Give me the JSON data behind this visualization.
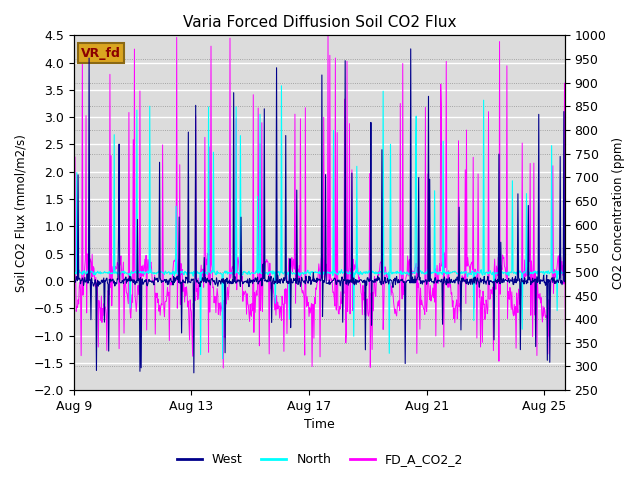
{
  "title": "Varia Forced Diffusion Soil CO2 Flux",
  "ylabel_left": "Soil CO2 Flux (mmol/m2/s)",
  "ylabel_right": "CO2 Concentration (ppm)",
  "xlabel": "Time",
  "ylim_left": [
    -2.0,
    4.5
  ],
  "ylim_right": [
    250,
    1000
  ],
  "yticks_left": [
    -2.0,
    -1.5,
    -1.0,
    -0.5,
    0.0,
    0.5,
    1.0,
    1.5,
    2.0,
    2.5,
    3.0,
    3.5,
    4.0,
    4.5
  ],
  "yticks_right": [
    250,
    300,
    350,
    400,
    450,
    500,
    550,
    600,
    650,
    700,
    750,
    800,
    850,
    900,
    950,
    1000
  ],
  "xtick_labels": [
    "Aug 9",
    "Aug 13",
    "Aug 17",
    "Aug 21",
    "Aug 25"
  ],
  "west_color": "#00008B",
  "north_color": "#00FFFF",
  "co2_color": "#FF00FF",
  "background_color": "#DCDCDC",
  "grid_color": "#FFFFFF",
  "legend_labels": [
    "West",
    "North",
    "FD_A_CO2_2"
  ],
  "tag_text": "VR_fd",
  "tag_bg": "#DAA520",
  "tag_border": "#8B6914",
  "n_days": 17,
  "n_per_day": 48
}
